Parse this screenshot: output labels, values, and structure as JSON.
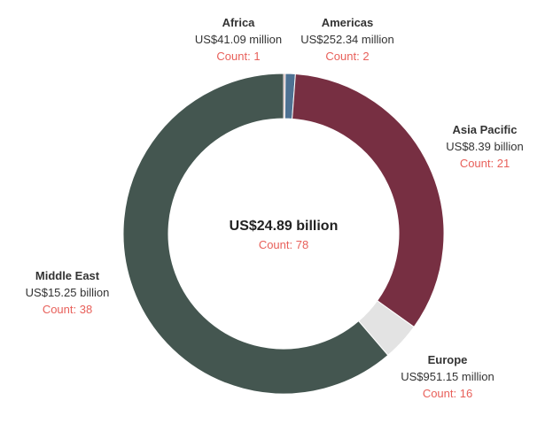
{
  "chart_data": {
    "type": "pie",
    "variant": "donut",
    "title": "",
    "center": {
      "total_label": "US$24.89 billion",
      "count_label": "Count: 78",
      "total_value_usd": 24890000000,
      "count": 78
    },
    "series": [
      {
        "category": "Africa",
        "value_label": "US$41.09 million",
        "count_label": "Count: 1",
        "value_usd": 41090000,
        "count": 1,
        "color": "#b07a74"
      },
      {
        "category": "Americas",
        "value_label": "US$252.34 million",
        "count_label": "Count: 2",
        "value_usd": 252340000,
        "count": 2,
        "color": "#4e7192"
      },
      {
        "category": "Asia Pacific",
        "value_label": "US$8.39 billion",
        "count_label": "Count: 21",
        "value_usd": 8390000000,
        "count": 21,
        "color": "#772f42"
      },
      {
        "category": "Europe",
        "value_label": "US$951.15 million",
        "count_label": "Count: 16",
        "value_usd": 951150000,
        "count": 16,
        "color": "#e3e3e3"
      },
      {
        "category": "Middle East",
        "value_label": "US$15.25 billion",
        "count_label": "Count: 38",
        "value_usd": 15250000000,
        "count": 38,
        "color": "#445650"
      }
    ],
    "legend": "none",
    "label_colors": {
      "name": "#333333",
      "value": "#333333",
      "count": "#e8605a"
    }
  }
}
